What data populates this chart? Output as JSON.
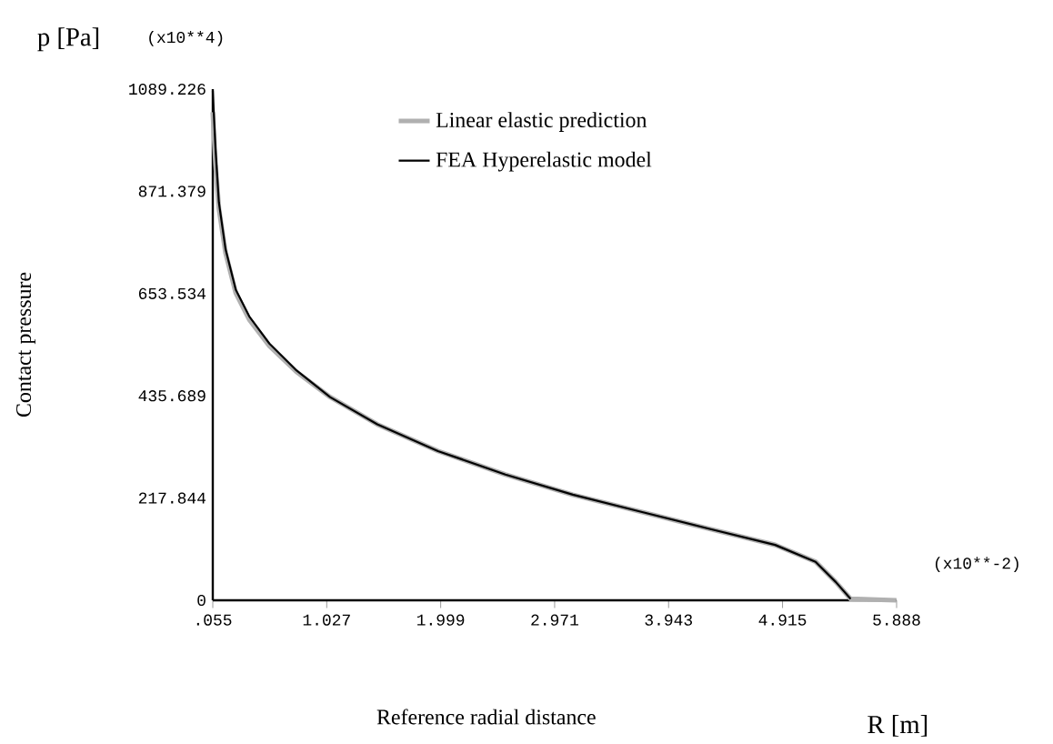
{
  "chart_data": {
    "type": "line",
    "xlabel": "Reference radial distance",
    "ylabel": "Contact pressure",
    "annotations": [
      "p [Pa]",
      "(x10**4)",
      "(x10**-2)",
      "R [m]"
    ],
    "xlim": [
      0.055,
      5.888
    ],
    "xticks": [
      {
        "value": 0.055,
        "label": ".055"
      },
      1.027,
      1.999,
      2.971,
      3.943,
      4.915,
      5.888
    ],
    "ylim": [
      0,
      1089.226
    ],
    "yticks": [
      0,
      217.844,
      435.689,
      653.534,
      871.379,
      1089.226
    ],
    "legend": "top right",
    "marker": "none",
    "line_style": "solid",
    "grid": false,
    "series": [
      {
        "name": "Linear elastic prediction",
        "color": "#b0b0b0",
        "x": [
          0.055,
          0.078,
          0.107,
          0.164,
          0.251,
          0.366,
          0.538,
          0.768,
          1.056,
          1.458,
          1.976,
          2.551,
          3.126,
          3.702,
          4.277,
          4.852,
          5.197,
          5.369,
          5.496,
          5.887
        ],
        "values": [
          1040,
          930,
          835,
          740,
          655,
          598,
          542,
          487,
          433,
          375,
          318,
          268,
          225,
          189,
          153,
          118,
          82,
          39,
          3,
          0
        ]
      },
      {
        "name": "FEA Hyperelastic model",
        "color": "#000000",
        "x": [
          0.055,
          0.078,
          0.107,
          0.164,
          0.251,
          0.366,
          0.538,
          0.768,
          1.056,
          1.458,
          1.976,
          2.551,
          3.126,
          3.702,
          4.277,
          4.852,
          5.197,
          5.369,
          5.496
        ],
        "values": [
          1085,
          963,
          848,
          748,
          662,
          605,
          547,
          490,
          433,
          375,
          318,
          268,
          225,
          189,
          153,
          118,
          82,
          39,
          3
        ]
      }
    ]
  }
}
